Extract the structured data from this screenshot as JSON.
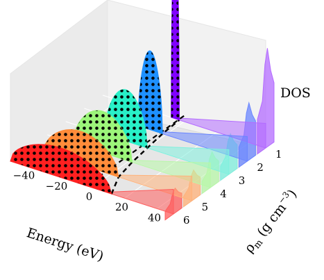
{
  "chart_data": {
    "type": "area",
    "projection": "3d",
    "grid": true,
    "x": {
      "label": "Energy (eV)",
      "ticks": [
        -40,
        -20,
        0,
        20,
        40
      ],
      "tick_labels": [
        "−40",
        "−20",
        "0",
        "20",
        "40"
      ],
      "lim": [
        -50,
        50
      ]
    },
    "y": {
      "label": "ρm (g cm−3)",
      "label_main": "ρ",
      "label_sub": "m",
      "label_rest": " (g cm",
      "label_sup": "−3",
      "label_close": ")",
      "ticks": [
        1,
        2,
        3,
        4,
        5,
        6
      ],
      "tick_labels": [
        "1",
        "2",
        "3",
        "4",
        "5",
        "6"
      ],
      "lim": [
        1,
        6
      ]
    },
    "z": {
      "label": "DOS"
    },
    "series": [
      {
        "density": 6,
        "left_edge": -50,
        "right_edge": 12,
        "peak": 0.3,
        "color": "#ff2020",
        "dos_color": "#ff5c5c",
        "dos_level": 0.25
      },
      {
        "density": 5,
        "left_edge": -41,
        "right_edge": 5,
        "peak": 0.34,
        "color": "#ff8c3a",
        "dos_color": "#ffb27a",
        "dos_level": 0.3
      },
      {
        "density": 4,
        "left_edge": -34,
        "right_edge": 2,
        "peak": 0.42,
        "color": "#9cf57a",
        "dos_color": "#b8f7a8",
        "dos_level": 0.35
      },
      {
        "density": 3,
        "left_edge": -26,
        "right_edge": 0,
        "peak": 0.52,
        "color": "#28f0c8",
        "dos_color": "#7ff0de",
        "dos_level": 0.4
      },
      {
        "density": 2,
        "left_edge": -17,
        "right_edge": -2,
        "peak": 0.8,
        "color": "#1e90ff",
        "dos_color": "#6a86ff",
        "dos_level": 0.58
      },
      {
        "density": 1,
        "left_edge": -8,
        "right_edge": -3,
        "peak": 2.0,
        "color": "#8000ff",
        "dos_color": "#b36bff",
        "dos_level": 1.0
      }
    ],
    "fermi_line": {
      "style": "dashed",
      "color": "#000000"
    }
  }
}
